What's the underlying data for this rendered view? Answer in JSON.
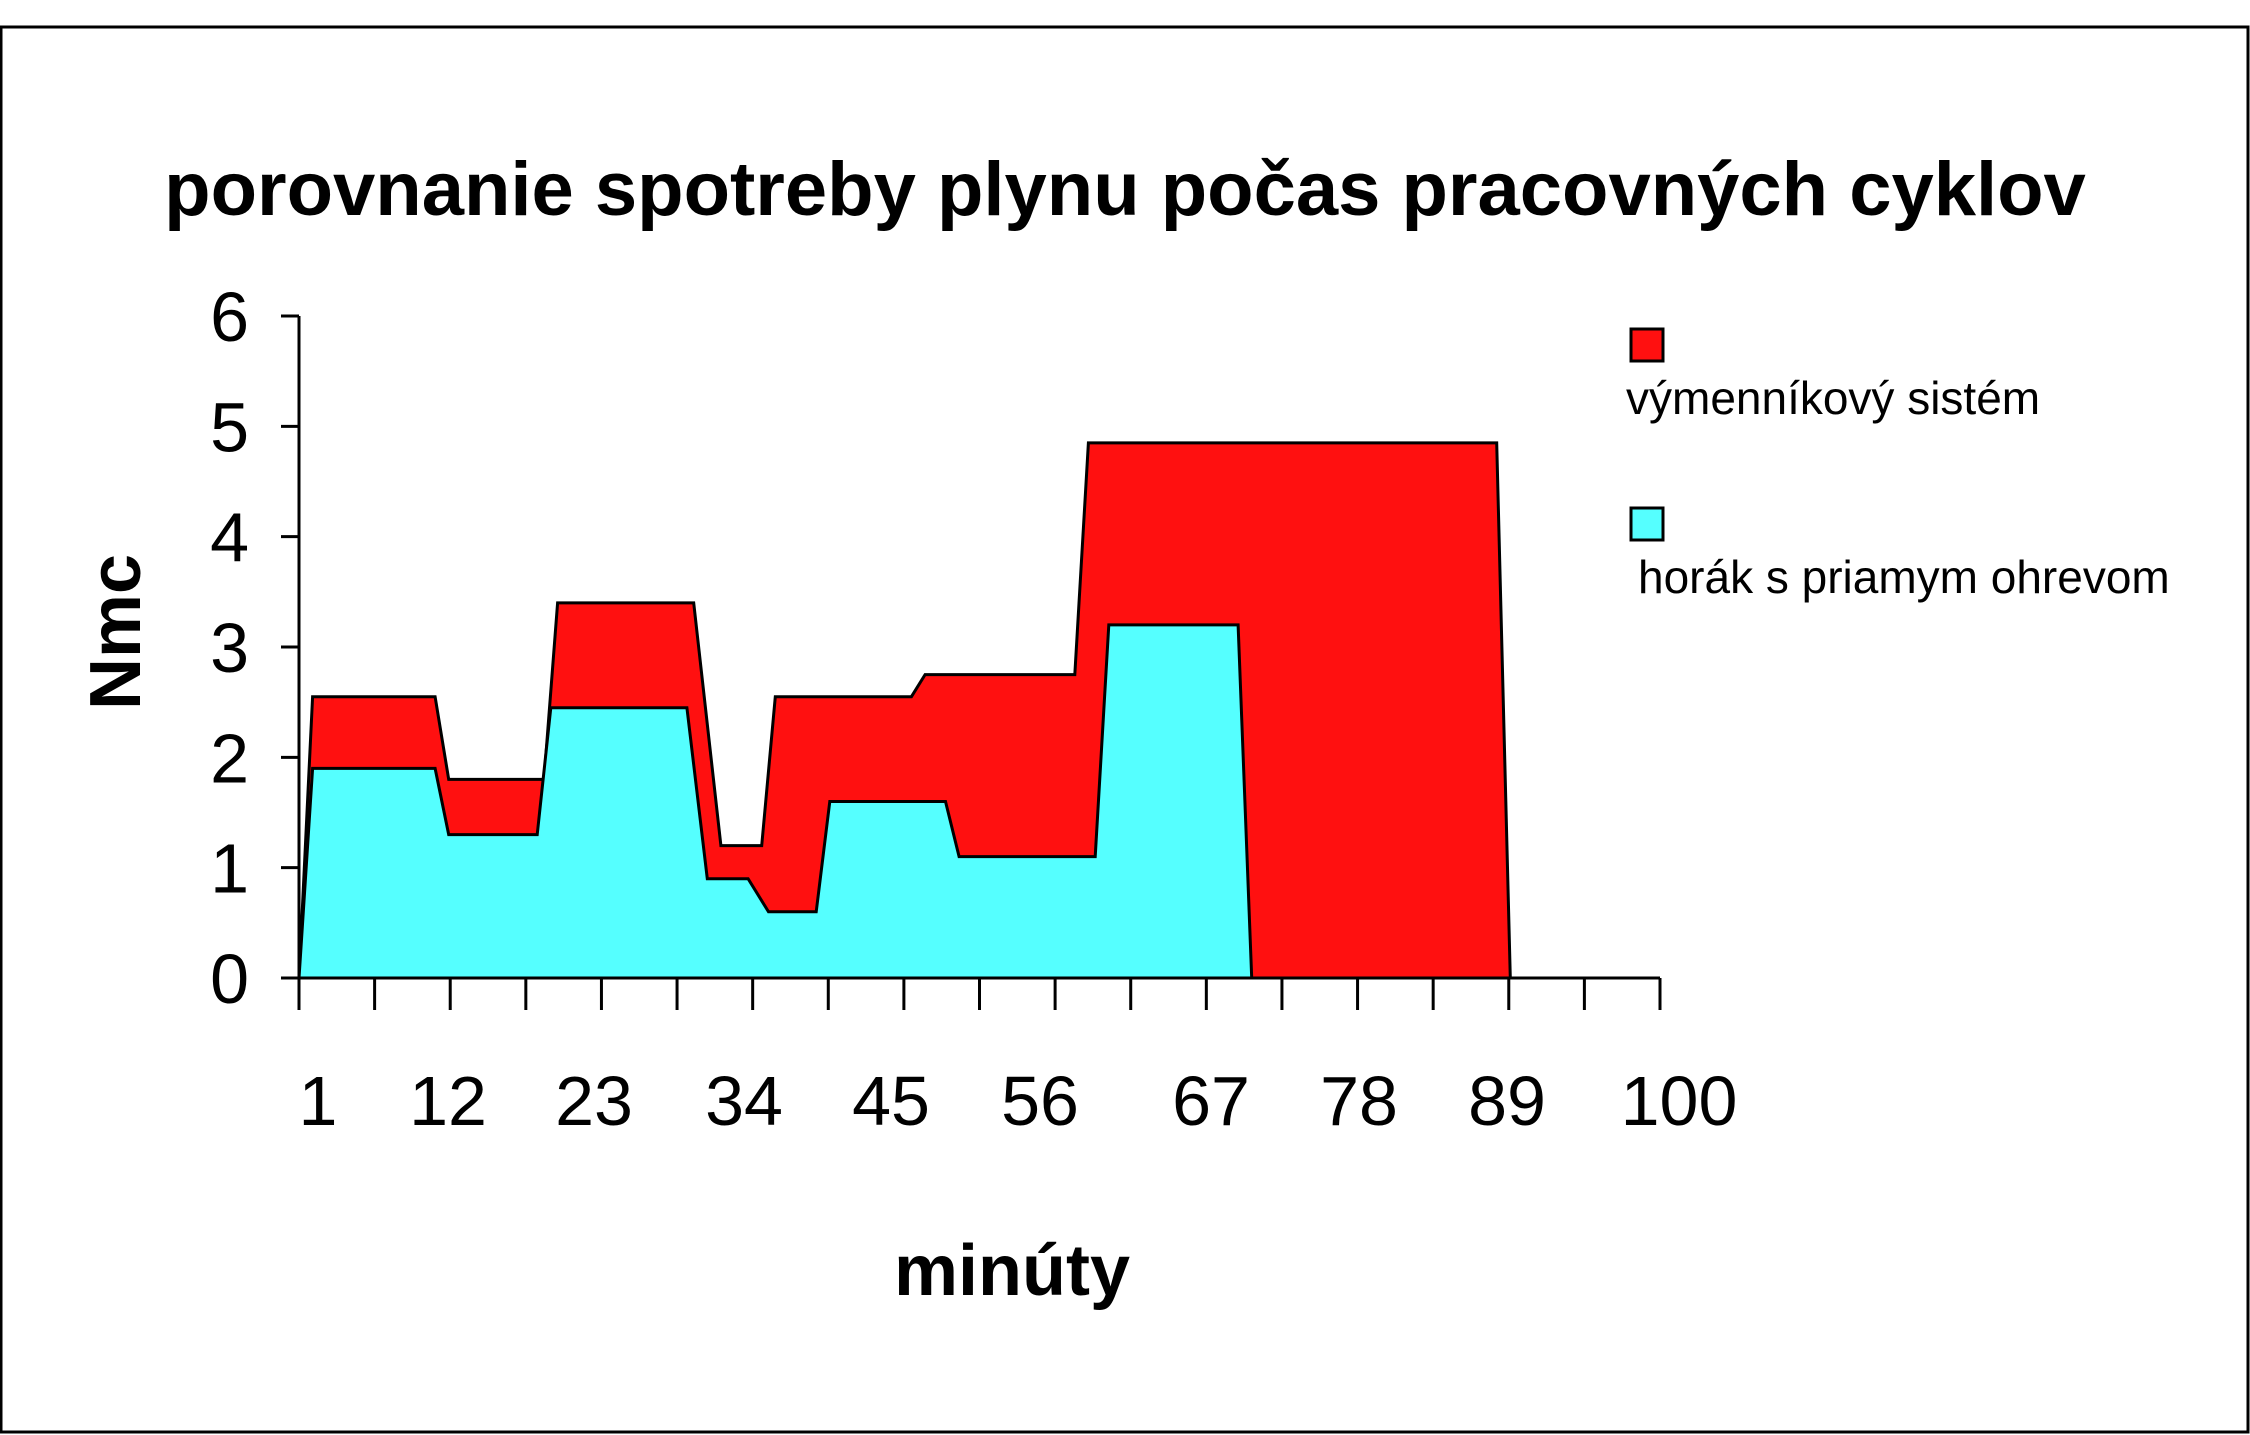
{
  "chart_data": {
    "type": "area",
    "stacked": false,
    "title": "porovnanie spotreby plynu počas pracovných cyklov",
    "xlabel": "minúty",
    "ylabel": "Nmc",
    "ylim": [
      0,
      6
    ],
    "xlim": [
      1,
      100
    ],
    "yticks": [
      "0",
      "1",
      "2",
      "3",
      "4",
      "5",
      "6"
    ],
    "xtick_labels": [
      "1",
      "12",
      "23",
      "34",
      "45",
      "56",
      "67",
      "78",
      "89",
      "100"
    ],
    "xtick_values": [
      1,
      12,
      23,
      34,
      45,
      56,
      67,
      78,
      89,
      100
    ],
    "legend_position": "right",
    "series": [
      {
        "name": "výmenníkový sistém",
        "color": "#ff1010",
        "x": [
          1,
          2,
          11,
          12,
          19,
          20,
          30,
          32,
          35,
          36,
          46,
          47,
          58,
          59,
          89,
          90
        ],
        "y": [
          0,
          2.55,
          2.55,
          1.8,
          1.8,
          3.4,
          3.4,
          1.2,
          1.2,
          2.55,
          2.55,
          2.75,
          2.75,
          4.85,
          4.85,
          0
        ]
      },
      {
        "name": "horák s priamym ohrevom",
        "color": "#55ffff",
        "x": [
          1,
          2,
          11,
          12,
          18.5,
          19.5,
          29.5,
          31,
          34,
          35.5,
          39,
          40,
          48.5,
          49.5,
          59.5,
          60.5,
          70,
          71
        ],
        "y": [
          0,
          1.9,
          1.9,
          1.3,
          1.3,
          2.45,
          2.45,
          0.9,
          0.9,
          0.6,
          0.6,
          1.6,
          1.6,
          1.1,
          1.1,
          3.2,
          3.2,
          0
        ]
      }
    ]
  }
}
